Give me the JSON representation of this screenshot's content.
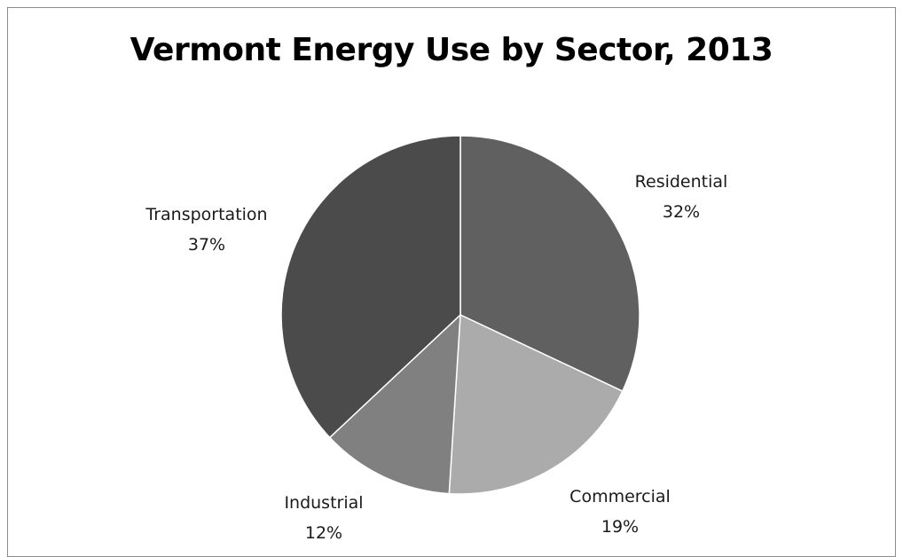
{
  "chart_data": {
    "type": "pie",
    "title": "Vermont Energy Use by Sector, 2013",
    "slices": [
      {
        "label": "Residential",
        "value": 32,
        "display": "32%",
        "color": "#606060"
      },
      {
        "label": "Commercial",
        "value": 19,
        "display": "19%",
        "color": "#ababab"
      },
      {
        "label": "Industrial",
        "value": 12,
        "display": "12%",
        "color": "#808080"
      },
      {
        "label": "Transportation",
        "value": 37,
        "display": "37%",
        "color": "#4b4b4b"
      }
    ],
    "start_angle_deg": 0,
    "direction": "clockwise",
    "legend": "none"
  }
}
